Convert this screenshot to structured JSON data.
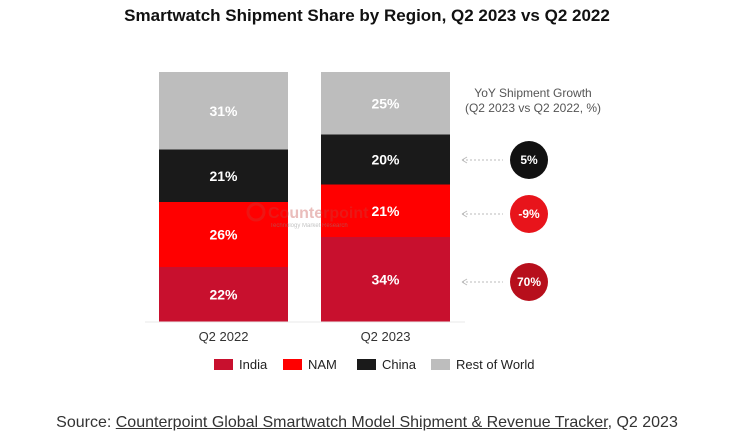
{
  "chart_data": {
    "type": "bar",
    "stacked": true,
    "title": "Smartwatch Shipment Share by Region, Q2 2023 vs Q2 2022",
    "categories": [
      "Q2 2022",
      "Q2 2023"
    ],
    "series": [
      {
        "name": "India",
        "color": "#c8102e",
        "values": [
          22,
          34
        ],
        "labels": [
          "22%",
          "34%"
        ]
      },
      {
        "name": "NAM",
        "color": "#ff0000",
        "values": [
          26,
          21
        ],
        "labels": [
          "26%",
          "21%"
        ]
      },
      {
        "name": "China",
        "color": "#1a1a1a",
        "values": [
          21,
          20
        ],
        "labels": [
          "21%",
          "20%"
        ]
      },
      {
        "name": "Rest of World",
        "color": "#bdbdbd",
        "values": [
          31,
          25
        ],
        "labels": [
          "31%",
          "25%"
        ]
      }
    ],
    "ylim": [
      0,
      100
    ],
    "xlabel": "",
    "ylabel": "",
    "legend": {
      "placement": "bottom",
      "entries": [
        "India",
        "NAM",
        "China",
        "Rest of World"
      ]
    },
    "yoy_growth": {
      "title_line1": "YoY Shipment Growth",
      "title_line2": "(Q2 2023 vs Q2 2022, %)",
      "items": [
        {
          "region": "China",
          "value": 5,
          "label": "5%",
          "color": "#111111"
        },
        {
          "region": "NAM",
          "value": -9,
          "label": "-9%",
          "color": "#e8141b"
        },
        {
          "region": "India",
          "value": 70,
          "label": "70%",
          "color": "#b70f1c"
        }
      ]
    },
    "watermark": {
      "brand": "Counterpoint",
      "tagline": "Technology Market Research"
    }
  },
  "source": {
    "prefix": "Source: ",
    "link_text": "Counterpoint Global Smartwatch Model Shipment & Revenue Tracker",
    "suffix": ", Q2 2023"
  }
}
